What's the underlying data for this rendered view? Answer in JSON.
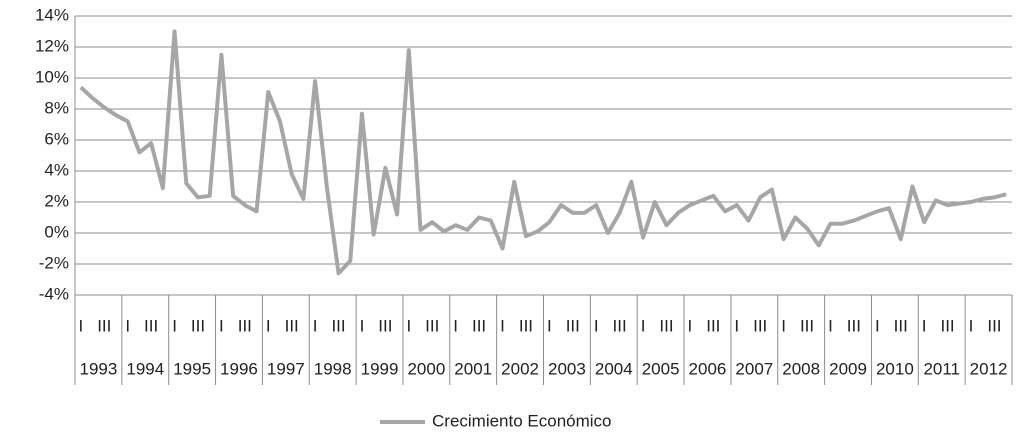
{
  "chart_data": {
    "type": "line",
    "categories": [
      "I",
      null,
      "III",
      null,
      "I",
      null,
      "III",
      null,
      "I",
      null,
      "III",
      null,
      "I",
      null,
      "III",
      null,
      "I",
      null,
      "III",
      null,
      "I",
      null,
      "III",
      null,
      "I",
      null,
      "III",
      null,
      "I",
      null,
      "III",
      null,
      "I",
      null,
      "III",
      null,
      "I",
      null,
      "III",
      null,
      "I",
      null,
      "III",
      null,
      "I",
      null,
      "III",
      null,
      "I",
      null,
      "III",
      null,
      "I",
      null,
      "III",
      null,
      "I",
      null,
      "III",
      null,
      "I",
      null,
      "III",
      null,
      "I",
      null,
      "III",
      null,
      "I",
      null,
      "III",
      null,
      "I",
      null,
      "III",
      null,
      "I",
      null,
      "III",
      null
    ],
    "years": [
      "1993",
      "1994",
      "1995",
      "1996",
      "1997",
      "1998",
      "1999",
      "2000",
      "2001",
      "2002",
      "2003",
      "2004",
      "2005",
      "2006",
      "2007",
      "2008",
      "2009",
      "2010",
      "2011",
      "2012"
    ],
    "series": [
      {
        "name": "Crecimiento Económico",
        "color": "#a6a6a6",
        "values": [
          9.4,
          8.7,
          8.1,
          7.6,
          7.2,
          5.2,
          5.8,
          2.9,
          13.0,
          3.2,
          2.3,
          2.4,
          11.5,
          2.4,
          1.8,
          1.4,
          9.1,
          7.2,
          3.8,
          2.2,
          9.8,
          3.0,
          -2.6,
          -1.8,
          7.7,
          -0.1,
          4.2,
          1.2,
          11.8,
          0.2,
          0.7,
          0.1,
          0.5,
          0.2,
          1.0,
          0.8,
          -1.0,
          3.3,
          -0.2,
          0.1,
          0.7,
          1.8,
          1.3,
          1.3,
          1.8,
          0.0,
          1.3,
          3.3,
          -0.3,
          2.0,
          0.5,
          1.3,
          1.8,
          2.1,
          2.4,
          1.4,
          1.8,
          0.8,
          2.3,
          2.8,
          -0.4,
          1.0,
          0.3,
          -0.8,
          0.6,
          0.6,
          0.8,
          1.1,
          1.4,
          1.6,
          -0.4,
          3.0,
          0.7,
          2.1,
          1.8,
          1.9,
          2.0,
          2.2,
          2.3,
          2.5
        ]
      }
    ],
    "ylim": [
      -4,
      14
    ],
    "yticks": [
      {
        "value": -4,
        "label": "-4%"
      },
      {
        "value": -2,
        "label": "-2%"
      },
      {
        "value": 0,
        "label": "0%"
      },
      {
        "value": 2,
        "label": "2%"
      },
      {
        "value": 4,
        "label": "4%"
      },
      {
        "value": 6,
        "label": "6%"
      },
      {
        "value": 8,
        "label": "8%"
      },
      {
        "value": 10,
        "label": "10%"
      },
      {
        "value": 12,
        "label": "12%"
      },
      {
        "value": 14,
        "label": "14%"
      }
    ],
    "grid": true,
    "legend": "bottom"
  }
}
